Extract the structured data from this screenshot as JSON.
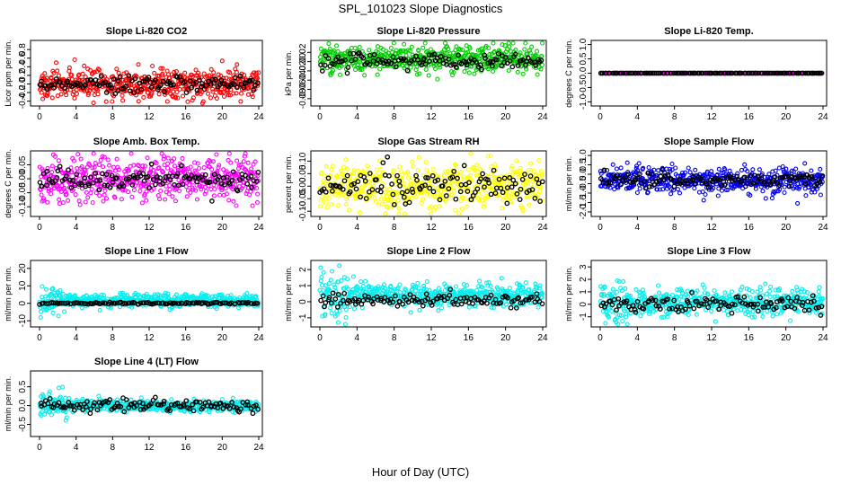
{
  "figure": {
    "title": "SPL_101023  Slope Diagnostics",
    "xlabel": "Hour of Day (UTC)"
  },
  "chart_data": [
    {
      "type": "scatter",
      "title": "Slope Li-820 CO2",
      "ylabel": "Licor ppm per min.",
      "xlim": [
        0,
        24
      ],
      "ylim": [
        -0.45,
        0.95
      ],
      "xticks": [
        "0",
        "4",
        "8",
        "12",
        "16",
        "20",
        "24"
      ],
      "yticks": [
        -0.4,
        -0.2,
        0.0,
        0.2,
        0.4,
        0.6,
        0.8
      ],
      "ytick_labels": [
        "-0.4",
        "-0.2",
        "0.0",
        "0.2",
        "0.4",
        "0.6",
        "0.8"
      ],
      "series": [
        {
          "color": "#ff0000",
          "center": 0.0,
          "spread": 0.17
        },
        {
          "color": "#000000",
          "center": 0.0,
          "spread": 0.1
        }
      ]
    },
    {
      "type": "scatter",
      "title": "Slope Li-820 Pressure",
      "ylabel": "kPa per min.",
      "xlim": [
        0,
        24
      ],
      "ylim": [
        -0.09,
        0.04
      ],
      "xticks": [
        "0",
        "4",
        "8",
        "12",
        "16",
        "20",
        "24"
      ],
      "yticks": [
        -0.08,
        -0.06,
        -0.04,
        -0.02,
        0.0,
        0.02
      ],
      "ytick_labels": [
        "-0.08",
        "-0.06",
        "-0.04",
        "-0.02",
        "0.00",
        "0.02"
      ],
      "series": [
        {
          "color": "#00cc00",
          "center": 0.005,
          "spread": 0.014
        },
        {
          "color": "#000000",
          "center": 0.0,
          "spread": 0.009
        }
      ]
    },
    {
      "type": "scatter",
      "title": "Slope Li-820 Temp.",
      "ylabel": "degrees C per min.",
      "xlim": [
        0,
        24
      ],
      "ylim": [
        -1.05,
        1.05
      ],
      "xticks": [
        "0",
        "4",
        "8",
        "12",
        "16",
        "20",
        "24"
      ],
      "yticks": [
        -1.0,
        -0.5,
        0.0,
        0.5,
        1.0
      ],
      "ytick_labels": [
        "-1.0",
        "-0.5",
        "0.0",
        "0.5",
        "1.0"
      ],
      "series": [
        {
          "color": "#ff00ff",
          "center": 0.0,
          "spread": 0.0
        },
        {
          "color": "#000000",
          "center": 0.0,
          "spread": 0.0
        }
      ]
    },
    {
      "type": "scatter",
      "title": "Slope Amb. Box Temp.",
      "ylabel": "degrees C per min.",
      "xlim": [
        0,
        24
      ],
      "ylim": [
        -0.125,
        0.09
      ],
      "xticks": [
        "0",
        "4",
        "8",
        "12",
        "16",
        "20",
        "24"
      ],
      "yticks": [
        -0.1,
        -0.05,
        0.0,
        0.05
      ],
      "ytick_labels": [
        "-0.10",
        "-0.05",
        "0.00",
        "0.05"
      ],
      "series": [
        {
          "color": "#ff00ff",
          "center": 0.0,
          "spread": 0.04
        },
        {
          "color": "#000000",
          "center": 0.0,
          "spread": 0.018
        }
      ]
    },
    {
      "type": "scatter",
      "title": "Slope Gas Stream RH",
      "ylabel": "percent per min.",
      "xlim": [
        0,
        24
      ],
      "ylim": [
        -0.11,
        0.13
      ],
      "xticks": [
        "0",
        "4",
        "8",
        "12",
        "16",
        "20",
        "24"
      ],
      "yticks": [
        -0.1,
        -0.05,
        0.0,
        0.05,
        0.1
      ],
      "ytick_labels": [
        "-0.10",
        "-0.05",
        "0.00",
        "0.05",
        "0.10"
      ],
      "series": [
        {
          "color": "#ffff00",
          "center": 0.0,
          "spread": 0.045
        },
        {
          "color": "#000000",
          "center": 0.0,
          "spread": 0.035
        }
      ]
    },
    {
      "type": "scatter",
      "title": "Slope Sample Flow",
      "ylabel": "ml/min per min.",
      "xlim": [
        0,
        24
      ],
      "ylim": [
        -2.1,
        1.1
      ],
      "xticks": [
        "0",
        "4",
        "8",
        "12",
        "16",
        "20",
        "24"
      ],
      "yticks": [
        -2.0,
        -1.5,
        -1.0,
        -0.5,
        0.0,
        0.5,
        1.0
      ],
      "ytick_labels": [
        "-2.0",
        "-1.5",
        "-1.0",
        "-0.5",
        "0.0",
        "0.5",
        "1.0"
      ],
      "series": [
        {
          "color": "#0000ee",
          "center": -0.35,
          "spread": 0.35
        },
        {
          "color": "#000000",
          "center": -0.3,
          "spread": 0.2
        }
      ]
    },
    {
      "type": "scatter",
      "title": "Slope Line 1 Flow",
      "ylabel": "ml/min per min.",
      "xlim": [
        0,
        24
      ],
      "ylim": [
        -12,
        23
      ],
      "xticks": [
        "0",
        "4",
        "8",
        "12",
        "16",
        "20",
        "24"
      ],
      "yticks": [
        -10,
        0,
        10,
        20
      ],
      "ytick_labels": [
        "-10",
        "0",
        "10",
        "20"
      ],
      "series": [
        {
          "color": "#00eeee",
          "center": 1.5,
          "spread": 1.8
        },
        {
          "color": "#000000",
          "center": 0.0,
          "spread": 0.25
        }
      ]
    },
    {
      "type": "scatter",
      "title": "Slope Line 2 Flow",
      "ylabel": "ml/min per min.",
      "xlim": [
        0,
        24
      ],
      "ylim": [
        -1.4,
        2.4
      ],
      "xticks": [
        "0",
        "4",
        "8",
        "12",
        "16",
        "20",
        "24"
      ],
      "yticks": [
        -1,
        0,
        1,
        2
      ],
      "ytick_labels": [
        "-1",
        "0",
        "1",
        "2"
      ],
      "series": [
        {
          "color": "#00eeee",
          "center": 0.4,
          "spread": 0.35
        },
        {
          "color": "#000000",
          "center": 0.1,
          "spread": 0.2
        }
      ]
    },
    {
      "type": "scatter",
      "title": "Slope Line 3 Flow",
      "ylabel": "ml/min per min.",
      "xlim": [
        0,
        24
      ],
      "ylim": [
        -1.6,
        3.3
      ],
      "xticks": [
        "0",
        "4",
        "8",
        "12",
        "16",
        "20",
        "24"
      ],
      "yticks": [
        -1,
        0,
        1,
        2,
        3
      ],
      "ytick_labels": [
        "-1",
        "0",
        "1",
        "2",
        "3"
      ],
      "series": [
        {
          "color": "#00eeee",
          "center": 0.2,
          "spread": 0.5
        },
        {
          "color": "#000000",
          "center": 0.0,
          "spread": 0.3
        }
      ]
    },
    {
      "type": "scatter",
      "title": "Slope Line 4 (LT) Flow",
      "ylabel": "ml/min per min.",
      "xlim": [
        0,
        24
      ],
      "ylim": [
        -0.75,
        0.85
      ],
      "xticks": [
        "0",
        "4",
        "8",
        "12",
        "16",
        "20",
        "24"
      ],
      "yticks": [
        -0.5,
        0.0,
        0.5
      ],
      "ytick_labels": [
        "-0.5",
        "0.0",
        "0.5"
      ],
      "series": [
        {
          "color": "#00eeee",
          "center": 0.0,
          "spread": 0.08
        },
        {
          "color": "#000000",
          "center": 0.0,
          "spread": 0.08
        }
      ]
    }
  ]
}
